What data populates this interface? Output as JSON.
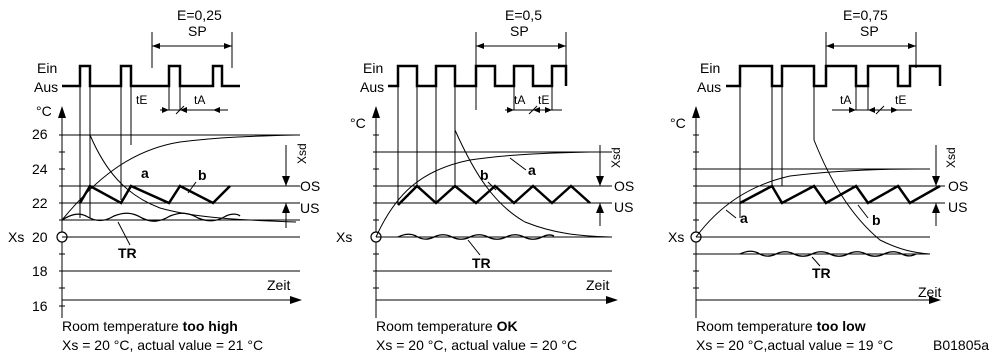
{
  "panels": [
    {
      "id": "high",
      "e_label": "E=0,25",
      "sp_label": "SP",
      "ein": "Ein",
      "aus": "Aus",
      "unit": "°C",
      "y_ticks": [
        "26",
        "24",
        "22",
        "20",
        "18",
        "16"
      ],
      "xs_label": "Xs",
      "xsd_label": "Xsd",
      "os_label": "OS",
      "us_label": "US",
      "curve_a": "a",
      "curve_b": "b",
      "tr_label": "TR",
      "te_label": "tE",
      "ta_label": "tA",
      "zeit": "Zeit",
      "caption_prefix": "Room temperature ",
      "caption_bold": "too high",
      "caption_line2": "Xs = 20 °C, actual value = 21 °C"
    },
    {
      "id": "ok",
      "e_label": "E=0,5",
      "sp_label": "SP",
      "ein": "Ein",
      "aus": "Aus",
      "unit": "°C",
      "xs_label": "Xs",
      "xsd_label": "Xsd",
      "os_label": "OS",
      "us_label": "US",
      "curve_a": "a",
      "curve_b": "b",
      "tr_label": "TR",
      "te_label": "tE",
      "ta_label": "tA",
      "zeit": "Zeit",
      "caption_prefix": "Room temperature ",
      "caption_bold": "OK",
      "caption_line2": "Xs = 20 °C, actual value = 20 °C"
    },
    {
      "id": "low",
      "e_label": "E=0,75",
      "sp_label": "SP",
      "ein": "Ein",
      "aus": "Aus",
      "unit": "°C",
      "xs_label": "Xs",
      "xsd_label": "Xsd",
      "os_label": "OS",
      "us_label": "US",
      "curve_a": "a",
      "curve_b": "b",
      "tr_label": "TR",
      "te_label": "tE",
      "ta_label": "tA",
      "zeit": "Zeit",
      "caption_prefix": "Room temperature ",
      "caption_bold": "too low",
      "caption_line2": "Xs = 20 °C,actual value = 19 °C"
    }
  ],
  "doc_code": "B01805a"
}
